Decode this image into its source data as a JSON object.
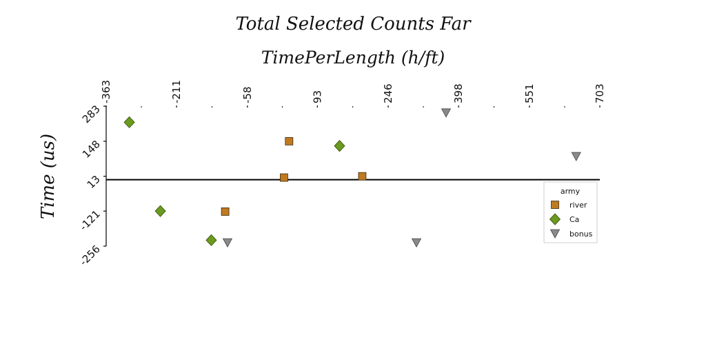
{
  "chart_data": {
    "type": "scatter",
    "title": "Total Selected Counts Far",
    "xlabel": "TimePerLength (h/ft)",
    "ylabel": "Time (us)",
    "x_axis_position": "top",
    "x_ticks": [
      -363,
      -211,
      -58,
      93,
      246,
      398,
      551,
      703
    ],
    "y_ticks": [
      -256,
      -121,
      13,
      148,
      283
    ],
    "xlim": [
      -363,
      703
    ],
    "ylim": [
      -256,
      283
    ],
    "zero_line": true,
    "grid": false,
    "legend": {
      "title": "army",
      "placement": "right"
    },
    "series": [
      {
        "name": "river",
        "marker": "square",
        "color": "#c07a20",
        "points": [
          {
            "x": 32,
            "y": 148
          },
          {
            "x": 21,
            "y": 8
          },
          {
            "x": -106,
            "y": -123
          },
          {
            "x": 190,
            "y": 13
          }
        ]
      },
      {
        "name": "Ca",
        "marker": "diamond",
        "color": "#6b9a1e",
        "points": [
          {
            "x": -313,
            "y": 221
          },
          {
            "x": -246,
            "y": -121
          },
          {
            "x": -136,
            "y": -233
          },
          {
            "x": 141,
            "y": 130
          }
        ]
      },
      {
        "name": "bonus",
        "marker": "triangle-down",
        "color": "#8a8a8a",
        "points": [
          {
            "x": -101,
            "y": -243
          },
          {
            "x": 307,
            "y": -243
          },
          {
            "x": 371,
            "y": 257
          },
          {
            "x": 652,
            "y": 89
          }
        ]
      }
    ]
  }
}
